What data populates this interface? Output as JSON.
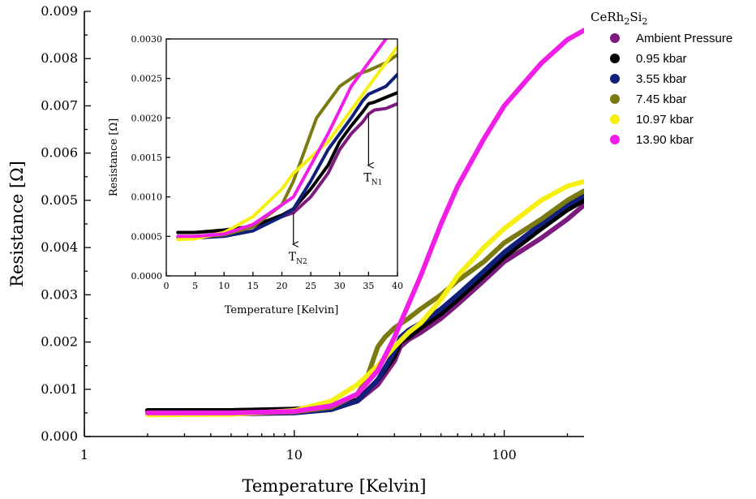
{
  "chart_data": [
    {
      "type": "line",
      "role": "main",
      "xlabel": "Temperature [Kelvin]",
      "ylabel": "Resistance [Ω]",
      "xscale": "log",
      "xlim": [
        1,
        240
      ],
      "ylim": [
        0,
        0.009
      ],
      "xticks": [
        1,
        10,
        100
      ],
      "xtick_labels": [
        "1",
        "10",
        "100"
      ],
      "yticks": [
        0,
        0.001,
        0.002,
        0.003,
        0.004,
        0.005,
        0.006,
        0.007,
        0.008,
        0.009
      ],
      "ytick_labels": [
        "0.000",
        "0.001",
        "0.002",
        "0.003",
        "0.004",
        "0.005",
        "0.006",
        "0.007",
        "0.008",
        "0.009"
      ],
      "legend": {
        "title": "CeRh",
        "title_sub1": "2",
        "title_mid": "Si",
        "title_sub2": "2",
        "placement": "top-right"
      },
      "series": [
        {
          "name": "Ambient Pressure",
          "color": "#7d1a7d",
          "x": [
            2,
            5,
            10,
            15,
            20,
            25,
            30,
            32,
            35,
            40,
            50,
            60,
            80,
            100,
            150,
            200,
            240
          ],
          "y": [
            0.00055,
            0.00055,
            0.00057,
            0.00062,
            0.00075,
            0.0011,
            0.0016,
            0.0019,
            0.00205,
            0.0022,
            0.0025,
            0.0028,
            0.0033,
            0.0037,
            0.0042,
            0.0046,
            0.0049
          ]
        },
        {
          "name": "0.95 kbar",
          "color": "#000000",
          "x": [
            2,
            5,
            10,
            15,
            20,
            25,
            30,
            32,
            35,
            40,
            50,
            60,
            80,
            100,
            150,
            200,
            240
          ],
          "y": [
            0.00055,
            0.00055,
            0.00058,
            0.00063,
            0.00077,
            0.0012,
            0.0017,
            0.002,
            0.0021,
            0.0023,
            0.0026,
            0.0029,
            0.0034,
            0.0038,
            0.0044,
            0.0048,
            0.005
          ]
        },
        {
          "name": "3.55 kbar",
          "color": "#10207a",
          "x": [
            2,
            5,
            10,
            15,
            20,
            25,
            30,
            32,
            35,
            40,
            50,
            60,
            80,
            100,
            150,
            200,
            240
          ],
          "y": [
            0.00048,
            0.00048,
            0.0005,
            0.00057,
            0.00075,
            0.0012,
            0.0018,
            0.0021,
            0.00225,
            0.0024,
            0.0027,
            0.003,
            0.0035,
            0.0039,
            0.0045,
            0.0049,
            0.0051
          ]
        },
        {
          "name": "7.45 kbar",
          "color": "#7a7a10",
          "x": [
            2,
            5,
            10,
            15,
            20,
            22,
            25,
            27,
            30,
            35,
            40,
            50,
            60,
            80,
            100,
            150,
            200,
            240
          ],
          "y": [
            0.00048,
            0.00049,
            0.00052,
            0.00062,
            0.0009,
            0.0012,
            0.0019,
            0.0021,
            0.0023,
            0.0025,
            0.0027,
            0.003,
            0.0033,
            0.0037,
            0.0041,
            0.0046,
            0.005,
            0.0052
          ]
        },
        {
          "name": "10.97 kbar",
          "color": "#f5f010",
          "x": [
            2,
            5,
            10,
            15,
            20,
            25,
            30,
            35,
            40,
            50,
            60,
            80,
            100,
            150,
            200,
            240
          ],
          "y": [
            0.00046,
            0.00047,
            0.00055,
            0.00075,
            0.0011,
            0.0015,
            0.0019,
            0.0022,
            0.0024,
            0.0029,
            0.0034,
            0.004,
            0.0044,
            0.005,
            0.0053,
            0.0054
          ]
        },
        {
          "name": "13.90 kbar",
          "color": "#f01ee6",
          "x": [
            2,
            5,
            10,
            15,
            20,
            25,
            30,
            32,
            35,
            40,
            50,
            60,
            80,
            100,
            150,
            200,
            240
          ],
          "y": [
            0.0005,
            0.0005,
            0.00053,
            0.00065,
            0.0009,
            0.0014,
            0.0021,
            0.0024,
            0.0028,
            0.0034,
            0.0045,
            0.0053,
            0.0063,
            0.007,
            0.0079,
            0.0084,
            0.0086
          ]
        }
      ]
    },
    {
      "type": "line",
      "role": "inset",
      "xlabel": "Temperature [Kelvin]",
      "ylabel": "Resistance [Ω]",
      "xscale": "linear",
      "xlim": [
        0,
        40
      ],
      "ylim": [
        0,
        0.003
      ],
      "xticks": [
        0,
        5,
        10,
        15,
        20,
        25,
        30,
        35,
        40
      ],
      "xtick_labels": [
        "0",
        "5",
        "10",
        "15",
        "20",
        "25",
        "30",
        "35",
        "40"
      ],
      "yticks": [
        0,
        0.0005,
        0.001,
        0.0015,
        0.002,
        0.0025,
        0.003
      ],
      "ytick_labels": [
        "0.0000",
        "0.0005",
        "0.0010",
        "0.0015",
        "0.0020",
        "0.0025",
        "0.0030"
      ],
      "annotations": [
        {
          "text": "T",
          "sub": "N1",
          "x": 35,
          "arrow_from_y": 0.00205,
          "arrow_to_y": 0.0014
        },
        {
          "text": "T",
          "sub": "N2",
          "x": 22,
          "arrow_from_y": 0.0008,
          "arrow_to_y": 0.0004
        }
      ],
      "series": [
        {
          "name": "Ambient Pressure",
          "color": "#7d1a7d",
          "x": [
            2,
            5,
            10,
            15,
            20,
            22,
            25,
            28,
            30,
            32,
            34,
            35,
            36,
            38,
            40
          ],
          "y": [
            0.00055,
            0.00055,
            0.00057,
            0.00062,
            0.00075,
            0.0008,
            0.001,
            0.0013,
            0.0016,
            0.0018,
            0.00195,
            0.00205,
            0.0021,
            0.00212,
            0.00218
          ]
        },
        {
          "name": "0.95 kbar",
          "color": "#000000",
          "x": [
            2,
            5,
            10,
            15,
            20,
            22,
            25,
            28,
            30,
            32,
            34,
            35,
            36,
            38,
            40
          ],
          "y": [
            0.00055,
            0.00055,
            0.00058,
            0.00063,
            0.00077,
            0.00085,
            0.0011,
            0.0014,
            0.0017,
            0.0019,
            0.00208,
            0.00218,
            0.0022,
            0.00226,
            0.00232
          ]
        },
        {
          "name": "3.55 kbar",
          "color": "#10207a",
          "x": [
            2,
            5,
            10,
            15,
            20,
            22,
            25,
            28,
            30,
            32,
            34,
            35,
            38,
            40
          ],
          "y": [
            0.00048,
            0.00048,
            0.0005,
            0.00057,
            0.00075,
            0.00085,
            0.0012,
            0.0016,
            0.0018,
            0.002,
            0.00222,
            0.0023,
            0.0024,
            0.00255
          ]
        },
        {
          "name": "7.45 kbar",
          "color": "#7a7a10",
          "x": [
            2,
            5,
            10,
            15,
            20,
            22,
            24,
            25,
            26,
            28,
            30,
            33,
            35,
            38,
            40
          ],
          "y": [
            0.00048,
            0.00049,
            0.00052,
            0.00062,
            0.0009,
            0.0012,
            0.0016,
            0.0018,
            0.002,
            0.0022,
            0.0024,
            0.00255,
            0.0026,
            0.0027,
            0.0028
          ]
        },
        {
          "name": "10.97 kbar",
          "color": "#f5f010",
          "x": [
            2,
            5,
            10,
            15,
            20,
            22,
            25,
            28,
            30,
            33,
            35,
            38,
            40
          ],
          "y": [
            0.00046,
            0.00047,
            0.00055,
            0.00075,
            0.0011,
            0.0013,
            0.0015,
            0.0017,
            0.0019,
            0.0022,
            0.0024,
            0.0027,
            0.0029
          ]
        },
        {
          "name": "13.90 kbar",
          "color": "#f01ee6",
          "x": [
            2,
            5,
            10,
            15,
            20,
            22,
            25,
            28,
            30,
            32,
            34,
            36,
            38
          ],
          "y": [
            0.0005,
            0.0005,
            0.00053,
            0.00065,
            0.0009,
            0.001,
            0.0014,
            0.0018,
            0.0021,
            0.0024,
            0.0026,
            0.0028,
            0.003
          ]
        }
      ]
    }
  ]
}
